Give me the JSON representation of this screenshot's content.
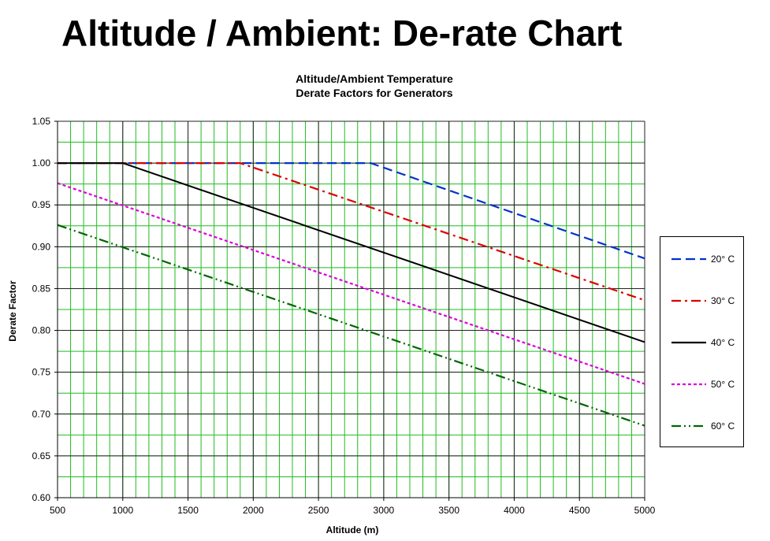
{
  "page": {
    "title": "Altitude / Ambient: De-rate Chart"
  },
  "chart_data": {
    "type": "line",
    "title": "Altitude/Ambient  Temperature",
    "subtitle": "Derate Factors for Generators",
    "xlabel": "Altitude  (m)",
    "ylabel": "Derate Factor",
    "xlim": [
      500,
      5000
    ],
    "ylim": [
      0.6,
      1.05
    ],
    "x_ticks": [
      500,
      1000,
      1500,
      2000,
      2500,
      3000,
      3500,
      4000,
      4500,
      5000
    ],
    "y_ticks": [
      0.6,
      0.65,
      0.7,
      0.75,
      0.8,
      0.85,
      0.9,
      0.95,
      1.0,
      1.05
    ],
    "x_tick_labels": [
      "500",
      "1000",
      "1500",
      "2000",
      "2500",
      "3000",
      "3500",
      "4000",
      "4500",
      "5000"
    ],
    "y_tick_labels": [
      "0.60",
      "0.65",
      "0.70",
      "0.75",
      "0.80",
      "0.85",
      "0.90",
      "0.95",
      "1.00",
      "1.05"
    ],
    "x_minor_step": 100,
    "y_minor_step": 0.025,
    "grid": true,
    "grid_color": "#22bb22",
    "legend_position": "right",
    "series": [
      {
        "name": "20° C",
        "color": "#0033cc",
        "dash": "12,6",
        "points": [
          [
            500,
            1.0
          ],
          [
            2900,
            1.0
          ],
          [
            5000,
            0.886
          ]
        ]
      },
      {
        "name": "30° C",
        "color": "#dd0000",
        "dash": "12,5,3,5",
        "points": [
          [
            500,
            1.0
          ],
          [
            1900,
            1.0
          ],
          [
            5000,
            0.836
          ]
        ]
      },
      {
        "name": "40° C",
        "color": "#000000",
        "dash": "",
        "points": [
          [
            500,
            1.0
          ],
          [
            1000,
            1.0
          ],
          [
            5000,
            0.786
          ]
        ]
      },
      {
        "name": "50° C",
        "color": "#dd00dd",
        "dash": "4,3",
        "points": [
          [
            500,
            0.976
          ],
          [
            5000,
            0.736
          ]
        ]
      },
      {
        "name": "60° C",
        "color": "#006600",
        "dash": "12,4,2,4,2,4",
        "points": [
          [
            500,
            0.926
          ],
          [
            5000,
            0.686
          ]
        ]
      }
    ]
  }
}
